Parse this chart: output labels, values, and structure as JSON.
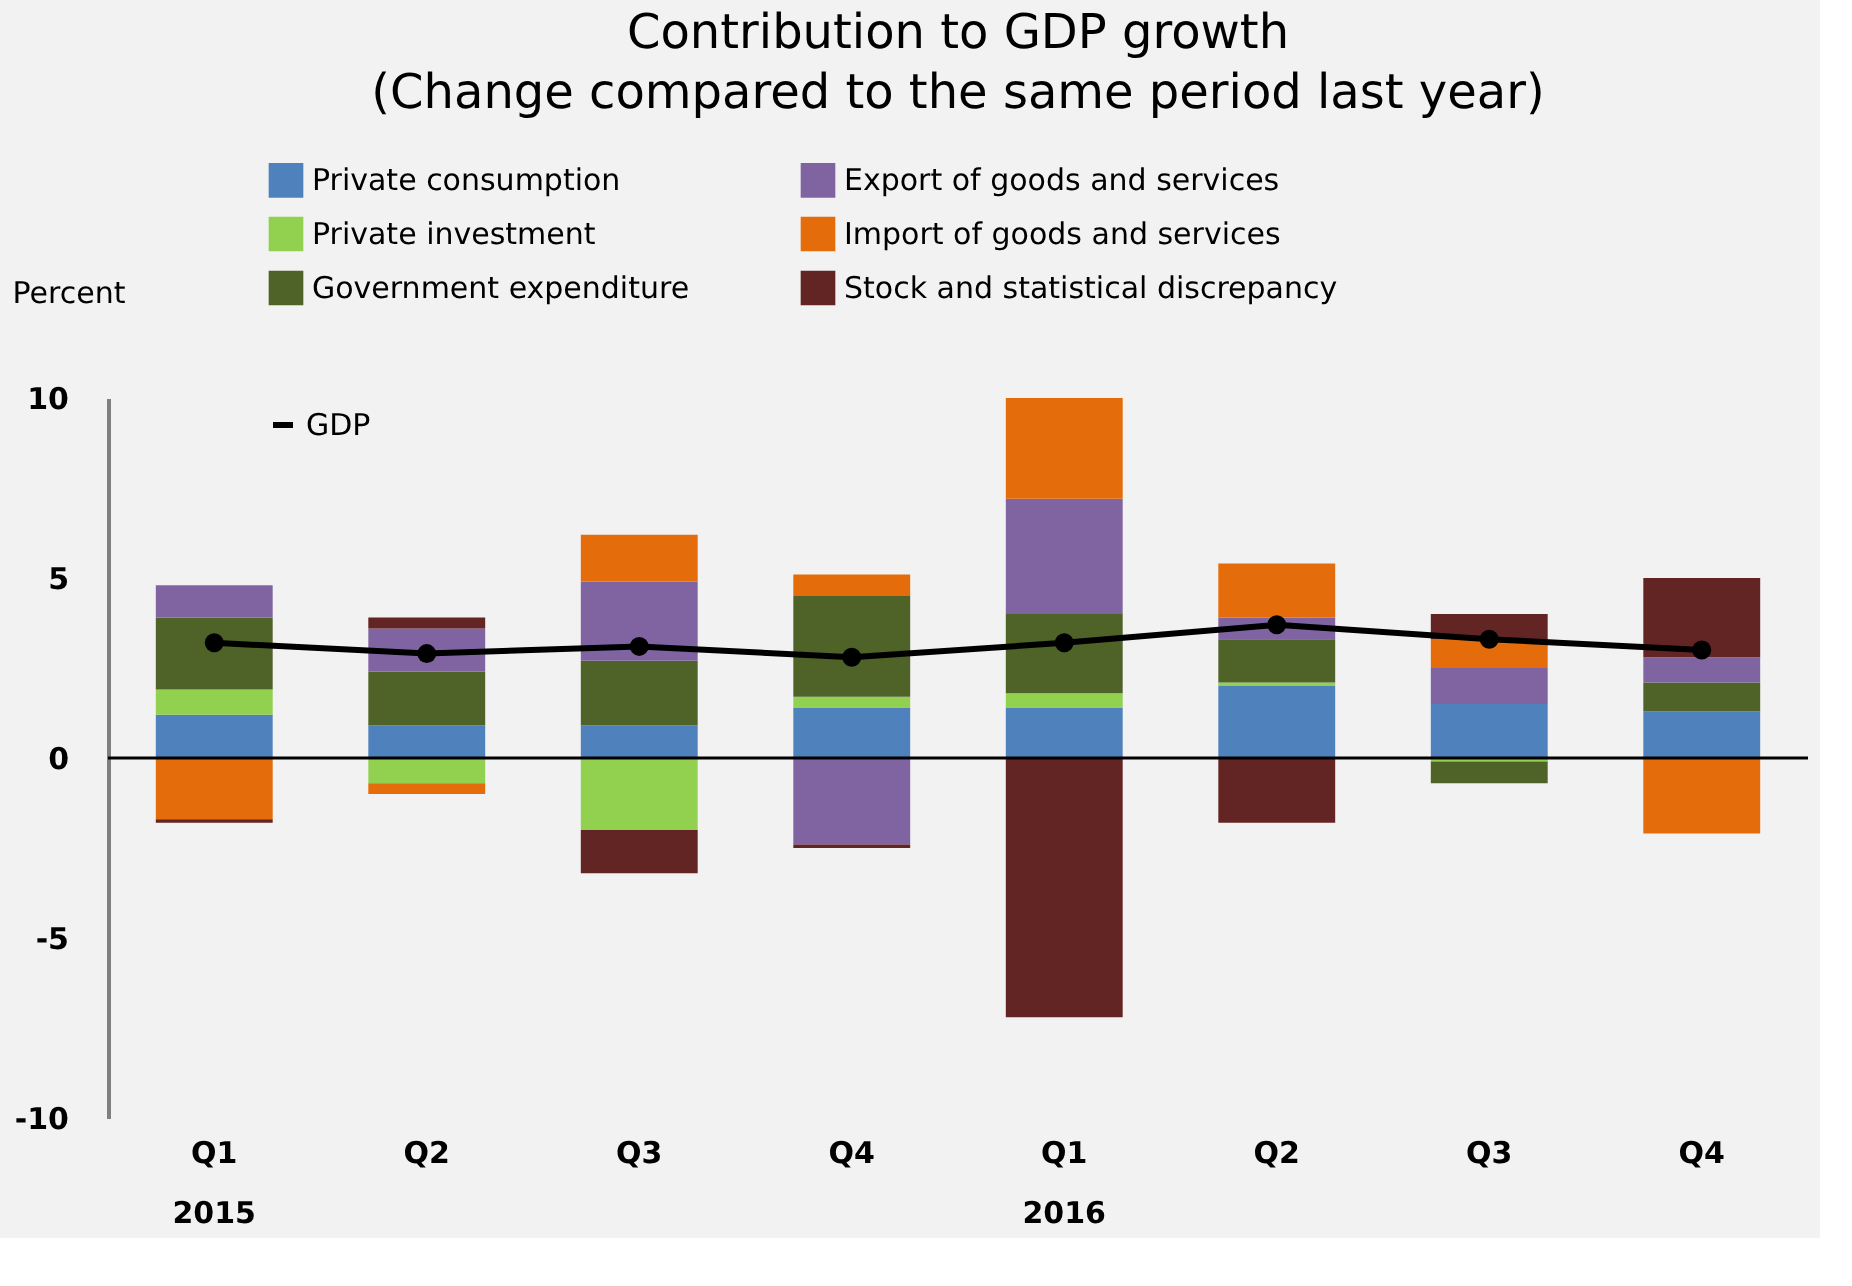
{
  "chart_data": {
    "type": "bar",
    "title": [
      "Contribution to GDP growth",
      "(Change compared to the same period last year)"
    ],
    "ylabel": "Percent",
    "categories": [
      "Q1\n2015",
      "Q2",
      "Q3",
      "Q4",
      "Q1\n2016",
      "Q2",
      "Q3",
      "Q4"
    ],
    "stacked": true,
    "series": [
      {
        "name": "Private consumption",
        "color": "#4f81bd",
        "values": [
          1.2,
          0.9,
          0.9,
          1.4,
          1.4,
          2.0,
          1.5,
          1.3
        ]
      },
      {
        "name": "Private investment",
        "color": "#92d050",
        "values": [
          0.7,
          -0.7,
          -2.0,
          0.3,
          0.4,
          0.1,
          -0.1,
          0.0
        ]
      },
      {
        "name": "Government expenditure",
        "color": "#4f6228",
        "values": [
          2.0,
          1.5,
          1.8,
          2.8,
          2.2,
          1.2,
          -0.6,
          0.8
        ]
      },
      {
        "name": "Export of goods and services",
        "color": "#8064a2",
        "values": [
          0.9,
          1.2,
          2.2,
          -2.4,
          3.2,
          0.6,
          1.0,
          0.7
        ]
      },
      {
        "name": "Import of goods and services",
        "color": "#e46c0a",
        "values": [
          -1.7,
          -0.3,
          1.3,
          0.6,
          2.8,
          1.5,
          0.8,
          -2.1
        ]
      },
      {
        "name": "Stock and statistical discrepancy",
        "color": "#632523",
        "values": [
          -0.1,
          0.3,
          -1.2,
          -0.1,
          -7.2,
          -1.8,
          0.7,
          2.2
        ]
      },
      {
        "name": "GDP",
        "type": "line",
        "color": "#000000",
        "marker": "circle",
        "values": [
          3.2,
          2.9,
          3.1,
          2.8,
          3.2,
          3.7,
          3.3,
          3.0
        ]
      }
    ],
    "ylim": [
      -10,
      10
    ],
    "yticks": [
      -10,
      -5,
      0,
      5,
      10
    ],
    "ref_lines": [
      {
        "axis": "y",
        "value": 0,
        "color": "#000000"
      }
    ],
    "grid": false,
    "legend": "top"
  }
}
